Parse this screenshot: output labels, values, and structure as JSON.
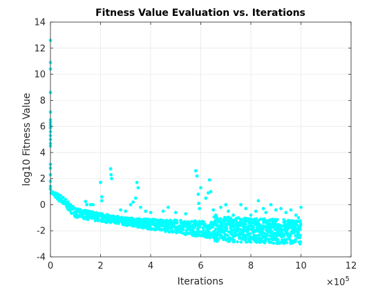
{
  "chart_data": {
    "type": "scatter",
    "title": "Fitness Value Evaluation vs. Iterations",
    "xlabel": "Iterations",
    "ylabel": "log10 Fitness Value",
    "x_exponent_label": "×10",
    "x_exponent_power": "5",
    "xlim": [
      0,
      1200000
    ],
    "ylim": [
      -4,
      14
    ],
    "xticks": [
      0,
      200000,
      400000,
      600000,
      800000,
      1000000,
      1200000
    ],
    "xtick_labels": [
      "0",
      "2",
      "4",
      "6",
      "8",
      "10",
      "12"
    ],
    "yticks": [
      -4,
      -2,
      0,
      2,
      4,
      6,
      8,
      10,
      12,
      14
    ],
    "ytick_labels": [
      "-4",
      "-2",
      "0",
      "2",
      "4",
      "6",
      "8",
      "10",
      "12",
      "14"
    ],
    "grid": true,
    "marker_color": "#00FFFF",
    "series": [
      {
        "points": [
          [
            0,
            12.6
          ],
          [
            0,
            10.9
          ],
          [
            0,
            10.4
          ],
          [
            0,
            8.6
          ],
          [
            0,
            7.1
          ],
          [
            0,
            6.5
          ],
          [
            0,
            6.3
          ],
          [
            0,
            6.1
          ],
          [
            0,
            5.9
          ],
          [
            0,
            5.6
          ],
          [
            0,
            5.3
          ],
          [
            0,
            5.0
          ],
          [
            0,
            4.7
          ],
          [
            0,
            4.5
          ],
          [
            0,
            3.1
          ],
          [
            0,
            2.8
          ],
          [
            0,
            2.3
          ],
          [
            0,
            1.8
          ],
          [
            0,
            1.4
          ],
          [
            0,
            1.2
          ],
          [
            5000,
            1.0
          ],
          [
            10000,
            0.95
          ],
          [
            20000,
            0.9
          ],
          [
            30000,
            0.8
          ],
          [
            40000,
            0.7
          ],
          [
            50000,
            0.55
          ],
          [
            60000,
            0.4
          ],
          [
            70000,
            0.2
          ],
          [
            80000,
            0.0
          ],
          [
            90000,
            -0.15
          ],
          [
            100000,
            -0.3
          ],
          [
            110000,
            -0.45
          ],
          [
            120000,
            -0.6
          ],
          [
            130000,
            -0.75
          ],
          [
            140000,
            0.25
          ],
          [
            145000,
            0.0
          ],
          [
            160000,
            -0.0
          ],
          [
            170000,
            0.0
          ],
          [
            200000,
            1.7
          ],
          [
            205000,
            0.6
          ],
          [
            205000,
            0.3
          ],
          [
            240000,
            2.75
          ],
          [
            242000,
            2.3
          ],
          [
            244000,
            2.0
          ],
          [
            280000,
            -0.4
          ],
          [
            300000,
            -0.5
          ],
          [
            320000,
            0.0
          ],
          [
            330000,
            0.2
          ],
          [
            340000,
            0.5
          ],
          [
            345000,
            1.7
          ],
          [
            350000,
            1.3
          ],
          [
            360000,
            -0.2
          ],
          [
            380000,
            -0.5
          ],
          [
            400000,
            -0.6
          ],
          [
            450000,
            -0.5
          ],
          [
            470000,
            -0.2
          ],
          [
            500000,
            -0.6
          ],
          [
            540000,
            -0.7
          ],
          [
            580000,
            2.6
          ],
          [
            585000,
            2.2
          ],
          [
            590000,
            0.8
          ],
          [
            592000,
            0.1
          ],
          [
            595000,
            -0.3
          ],
          [
            600000,
            1.3
          ],
          [
            620000,
            0.5
          ],
          [
            630000,
            0.9
          ],
          [
            635000,
            1.9
          ],
          [
            640000,
            1.0
          ],
          [
            650000,
            -0.4
          ],
          [
            660000,
            -0.8
          ],
          [
            680000,
            -0.2
          ],
          [
            700000,
            0.0
          ],
          [
            710000,
            -0.5
          ],
          [
            730000,
            -0.8
          ],
          [
            760000,
            0.0
          ],
          [
            780000,
            -0.3
          ],
          [
            800000,
            -0.8
          ],
          [
            820000,
            -0.5
          ],
          [
            830000,
            0.3
          ],
          [
            850000,
            -0.3
          ],
          [
            860000,
            -0.6
          ],
          [
            880000,
            0.0
          ],
          [
            900000,
            -0.4
          ],
          [
            920000,
            -0.3
          ],
          [
            940000,
            -0.6
          ],
          [
            960000,
            -0.4
          ],
          [
            980000,
            -0.8
          ],
          [
            990000,
            -1.0
          ],
          [
            1000000,
            -0.2
          ]
        ]
      }
    ]
  }
}
